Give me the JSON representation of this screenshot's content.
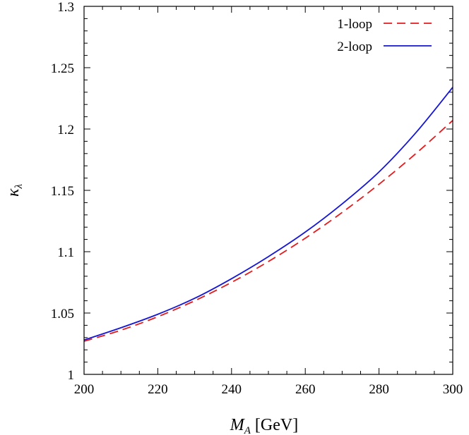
{
  "chart_data": {
    "type": "line",
    "title": "",
    "xlabel": "M_A [GeV]",
    "ylabel": "κ_λ",
    "xlim": [
      200,
      300
    ],
    "ylim": [
      1,
      1.3
    ],
    "x_ticks": [
      200,
      220,
      240,
      260,
      280,
      300
    ],
    "y_ticks": [
      1,
      1.05,
      1.1,
      1.15,
      1.2,
      1.25,
      1.3
    ],
    "x_tick_labels": [
      "200",
      "220",
      "240",
      "260",
      "280",
      "300"
    ],
    "y_tick_labels": [
      "1",
      "1.05",
      "1.1",
      "1.15",
      "1.2",
      "1.25",
      "1.3"
    ],
    "grid": false,
    "legend_position": "top-right",
    "x": [
      200,
      210,
      220,
      230,
      240,
      250,
      260,
      270,
      280,
      290,
      300
    ],
    "series": [
      {
        "name": "1-loop",
        "color": "#e41a1c",
        "style": "dashed",
        "values": [
          1.027,
          1.036,
          1.047,
          1.06,
          1.075,
          1.092,
          1.111,
          1.132,
          1.155,
          1.18,
          1.207
        ]
      },
      {
        "name": "2-loop",
        "color": "#1515d6",
        "style": "solid",
        "values": [
          1.028,
          1.038,
          1.049,
          1.062,
          1.078,
          1.096,
          1.116,
          1.139,
          1.165,
          1.197,
          1.234
        ]
      }
    ]
  }
}
